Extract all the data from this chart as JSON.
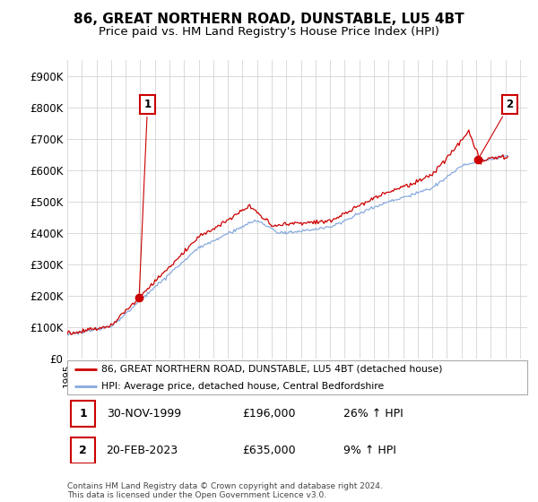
{
  "title": "86, GREAT NORTHERN ROAD, DUNSTABLE, LU5 4BT",
  "subtitle": "Price paid vs. HM Land Registry's House Price Index (HPI)",
  "ylim": [
    0,
    950000
  ],
  "yticks": [
    0,
    100000,
    200000,
    300000,
    400000,
    500000,
    600000,
    700000,
    800000,
    900000
  ],
  "ytick_labels": [
    "£0",
    "£100K",
    "£200K",
    "£300K",
    "£400K",
    "£500K",
    "£600K",
    "£700K",
    "£800K",
    "£900K"
  ],
  "xmin": 1995.0,
  "xmax": 2026.5,
  "sale1_date": 1999.92,
  "sale1_price": 196000,
  "sale1_label": "1",
  "sale2_date": 2023.13,
  "sale2_price": 635000,
  "sale2_label": "2",
  "legend_line1": "86, GREAT NORTHERN ROAD, DUNSTABLE, LU5 4BT (detached house)",
  "legend_line2": "HPI: Average price, detached house, Central Bedfordshire",
  "table_row1": [
    "1",
    "30-NOV-1999",
    "£196,000",
    "26% ↑ HPI"
  ],
  "table_row2": [
    "2",
    "20-FEB-2023",
    "£635,000",
    "9% ↑ HPI"
  ],
  "footer": "Contains HM Land Registry data © Crown copyright and database right 2024.\nThis data is licensed under the Open Government Licence v3.0.",
  "hpi_color": "#88aadd",
  "sale_color": "#cc0000",
  "background_color": "#ffffff",
  "grid_color": "#cccccc",
  "title_fontsize": 11,
  "subtitle_fontsize": 9.5
}
